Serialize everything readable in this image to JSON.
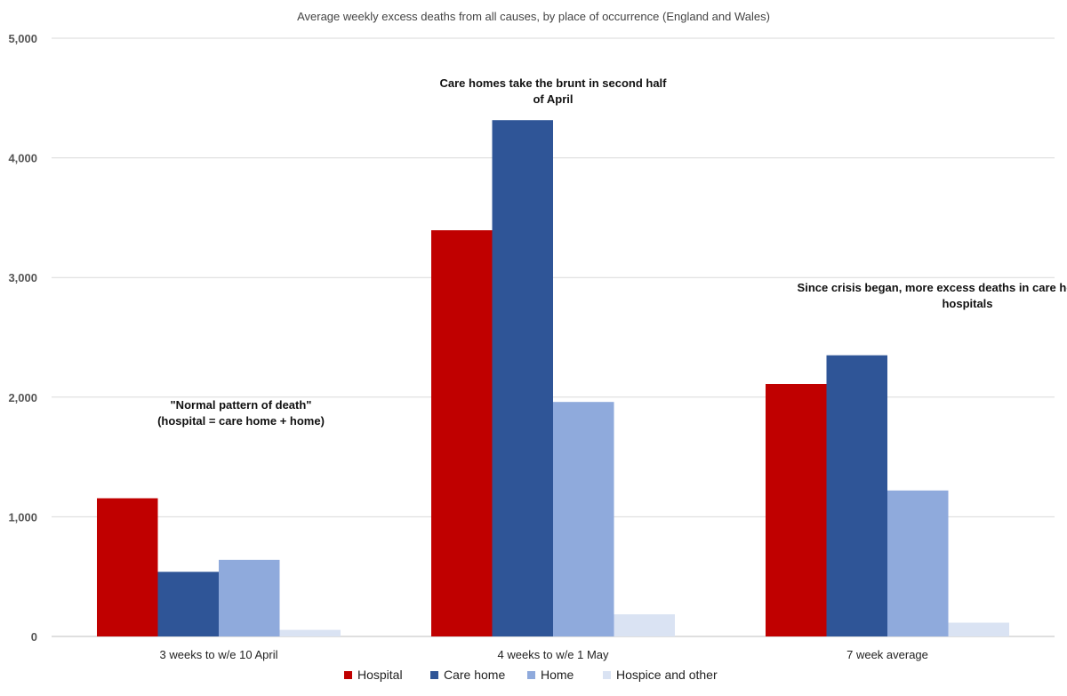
{
  "chart_data": {
    "type": "bar",
    "title": "Average weekly excess deaths from all causes, by place of occurrence (England and Wales)",
    "categories": [
      "3 weeks to w/e 10 April",
      "4 weeks to w/e 1 May",
      "7 week average"
    ],
    "series": [
      {
        "name": "Hospital",
        "color": "#c00000",
        "values": [
          1155,
          3395,
          2110
        ]
      },
      {
        "name": "Care home",
        "color": "#2f5597",
        "values": [
          540,
          4315,
          2350
        ]
      },
      {
        "name": "Home",
        "color": "#8faadc",
        "values": [
          640,
          1960,
          1220
        ]
      },
      {
        "name": "Hospice and other",
        "color": "#dae3f3",
        "values": [
          55,
          185,
          115
        ]
      }
    ],
    "ylim": [
      0,
      5000
    ],
    "yticks": [
      {
        "value": 0,
        "label": "0"
      },
      {
        "value": 1000,
        "label": "1,000"
      },
      {
        "value": 2000,
        "label": "2,000"
      },
      {
        "value": 3000,
        "label": "3,000"
      },
      {
        "value": 4000,
        "label": "4,000"
      },
      {
        "value": 5000,
        "label": "5,000"
      }
    ],
    "xlabel": "",
    "ylabel": "",
    "grid": true,
    "legend_position": "bottom",
    "annotations": [
      {
        "lines": [
          "\"Normal pattern of death\"",
          "(hospital = care home + home)"
        ],
        "category": 0
      },
      {
        "lines": [
          "Care homes take the brunt in second half",
          "of April"
        ],
        "category": 1
      },
      {
        "lines": [
          "Since crisis began, more excess deaths in care homes than in",
          "hospitals"
        ],
        "category": 2
      }
    ]
  }
}
